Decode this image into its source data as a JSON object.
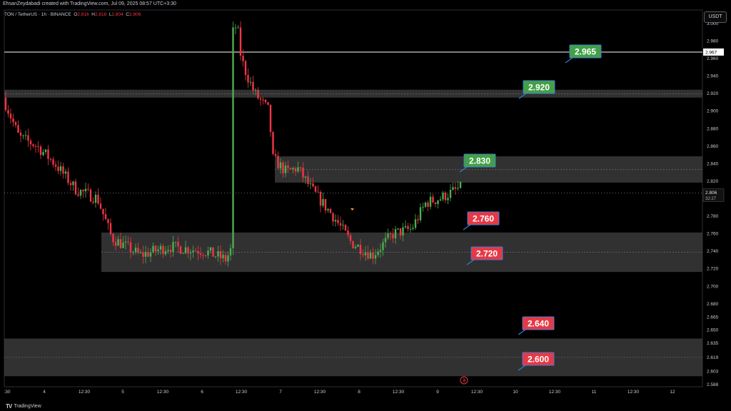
{
  "header": {
    "credit": "EhsanZeydabadi created with TradingView.com, Jul 09, 2025 08:57 UTC+3:30"
  },
  "legend": {
    "symbol": "TON / TetherUS · 1h · BINANCE",
    "o_label": "O",
    "o": "2.816",
    "h_label": "H",
    "h": "2.818",
    "l_label": "L",
    "l": "2.804",
    "c_label": "C",
    "c": "2.806"
  },
  "currency_button": "USDT",
  "brand": "TradingView",
  "colors": {
    "background": "#000000",
    "up": "#4caf50",
    "down": "#f23645",
    "zone": "#3a3a3a",
    "label_green": "#43a047",
    "label_red": "#e53946"
  },
  "chart_data": {
    "type": "candlestick",
    "y_range": [
      2.585,
      3.015
    ],
    "y_ticks": [
      "3.000",
      "2.980",
      "2.960",
      "2.940",
      "2.920",
      "2.900",
      "2.880",
      "2.860",
      "2.840",
      "2.820",
      "2.800",
      "2.780",
      "2.760",
      "2.740",
      "2.720",
      "2.700",
      "2.680",
      "2.665",
      "2.650",
      "2.635",
      "2.619",
      "2.603",
      "2.588"
    ],
    "x_ticks": [
      ":30",
      "4",
      "12:30",
      "5",
      "12:30",
      "6",
      "12:30",
      "7",
      "12:30",
      "8",
      "12:30",
      "9",
      "12:30",
      "10",
      "12:30",
      "11",
      "12:30",
      "12"
    ],
    "price_line": {
      "value": 2.967,
      "label": "2.967"
    },
    "current_price": {
      "value": 2.806,
      "label": "2.806",
      "countdown": "32:27"
    },
    "zones": [
      {
        "from": 2.915,
        "to": 2.924
      },
      {
        "from": 2.818,
        "to": 2.848
      },
      {
        "from": 2.716,
        "to": 2.761
      },
      {
        "from": 2.597,
        "to": 2.64
      }
    ],
    "levels": [
      {
        "label": "2.965",
        "value": 2.965,
        "color": "green"
      },
      {
        "label": "2.920",
        "value": 2.92,
        "color": "green"
      },
      {
        "label": "2.830",
        "value": 2.83,
        "color": "green"
      },
      {
        "label": "2.760",
        "value": 2.76,
        "color": "red"
      },
      {
        "label": "2.720",
        "value": 2.72,
        "color": "red"
      },
      {
        "label": "2.640",
        "value": 2.64,
        "color": "red"
      },
      {
        "label": "2.600",
        "value": 2.6,
        "color": "red"
      }
    ],
    "grid": false
  }
}
